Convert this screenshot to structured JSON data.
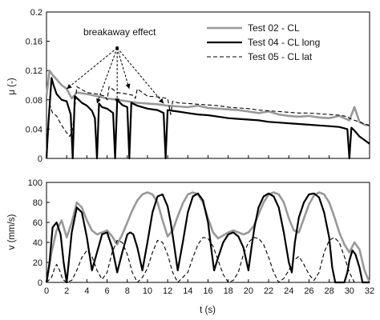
{
  "chart_data": [
    {
      "type": "line",
      "ylabel": "μ (-)",
      "xlim": [
        0,
        32
      ],
      "ylim": [
        0,
        0.2
      ],
      "yticks": [
        "0",
        "0.04",
        "0.08",
        "0.12",
        "0.16",
        "0.2"
      ],
      "grid": false,
      "legend": "top-right",
      "annotation": {
        "text": "breakaway effect",
        "origin": [
          7.0,
          0.151
        ],
        "targets": [
          [
            2.0,
            0.095
          ],
          [
            5.0,
            0.075
          ],
          [
            7.0,
            0.075
          ],
          [
            8.2,
            0.095
          ],
          [
            11.6,
            0.075
          ]
        ]
      },
      "series": [
        {
          "name": "Test 02 - CL",
          "color": "#999999",
          "style": "solid",
          "x": [
            0.0,
            0.3,
            0.6,
            1.0,
            1.5,
            2.0,
            2.5,
            3.0,
            4.0,
            5.0,
            6.0,
            7.0,
            8.0,
            9.0,
            10.0,
            11.0,
            12.0,
            13.0,
            14.0,
            15.0,
            16.0,
            17.0,
            18.0,
            19.0,
            20.0,
            21.0,
            22.0,
            23.0,
            24.0,
            25.0,
            26.0,
            27.0,
            28.0,
            29.0,
            30.0,
            30.5,
            31.0,
            31.5,
            32.0
          ],
          "y": [
            0.085,
            0.12,
            0.114,
            0.108,
            0.1,
            0.095,
            0.082,
            0.09,
            0.088,
            0.085,
            0.082,
            0.08,
            0.078,
            0.076,
            0.075,
            0.074,
            0.072,
            0.071,
            0.07,
            0.072,
            0.069,
            0.068,
            0.067,
            0.066,
            0.064,
            0.062,
            0.064,
            0.06,
            0.058,
            0.057,
            0.058,
            0.056,
            0.055,
            0.058,
            0.052,
            0.07,
            0.05,
            0.046,
            0.045
          ]
        },
        {
          "name": "Test 04 - CL long",
          "color": "#000000",
          "style": "solid",
          "x": [
            0.0,
            0.2,
            0.5,
            0.7,
            1.0,
            1.5,
            2.0,
            2.4,
            2.6,
            2.8,
            3.2,
            3.5,
            4.0,
            4.5,
            4.8,
            5.0,
            5.2,
            5.5,
            6.0,
            6.6,
            6.8,
            7.0,
            7.5,
            8.0,
            8.2,
            8.4,
            9.0,
            10.0,
            11.0,
            11.6,
            11.8,
            12.0,
            13.0,
            14.0,
            15.0,
            16.0,
            17.0,
            18.0,
            19.0,
            20.0,
            21.0,
            22.0,
            23.0,
            24.0,
            25.0,
            26.0,
            27.0,
            28.0,
            29.0,
            29.8,
            30.0,
            30.2,
            30.5,
            31.0,
            31.5,
            32.0
          ],
          "y": [
            0.0,
            0.05,
            0.11,
            0.1,
            0.088,
            0.08,
            0.078,
            0.06,
            0.0,
            0.085,
            0.08,
            0.076,
            0.072,
            0.065,
            0.055,
            0.0,
            0.075,
            0.07,
            0.068,
            0.062,
            0.0,
            0.08,
            0.073,
            0.07,
            0.0,
            0.076,
            0.072,
            0.068,
            0.066,
            0.062,
            0.0,
            0.066,
            0.064,
            0.062,
            0.06,
            0.059,
            0.057,
            0.055,
            0.054,
            0.053,
            0.052,
            0.05,
            0.049,
            0.048,
            0.047,
            0.046,
            0.045,
            0.044,
            0.043,
            0.04,
            0.0,
            0.042,
            0.038,
            0.03,
            0.025,
            0.02
          ]
        },
        {
          "name": "Test 05 - CL lat",
          "color": "#000000",
          "style": "dashed",
          "x": [
            0.0,
            0.3,
            0.6,
            1.0,
            1.5,
            2.0,
            2.3,
            2.6,
            3.0,
            4.0,
            5.0,
            5.8,
            6.0,
            6.2,
            7.0,
            8.0,
            8.6,
            8.8,
            9.0,
            10.0,
            11.0,
            12.0,
            12.3,
            12.5,
            13.0,
            14.0,
            15.0,
            16.0,
            17.0,
            18.0,
            19.0,
            20.0,
            21.0,
            22.0,
            23.0,
            24.0,
            25.0,
            26.0,
            27.0,
            28.0,
            29.0,
            29.8,
            30.0,
            30.5,
            31.0,
            31.5,
            32.0
          ],
          "y": [
            0.005,
            0.075,
            0.062,
            0.058,
            0.045,
            0.035,
            0.03,
            0.04,
            0.098,
            0.09,
            0.088,
            0.085,
            0.08,
            0.098,
            0.09,
            0.088,
            0.086,
            0.082,
            0.095,
            0.085,
            0.084,
            0.082,
            0.06,
            0.078,
            0.076,
            0.075,
            0.074,
            0.073,
            0.072,
            0.07,
            0.069,
            0.068,
            0.066,
            0.065,
            0.064,
            0.063,
            0.062,
            0.062,
            0.061,
            0.06,
            0.059,
            0.057,
            0.055,
            0.052,
            0.05,
            0.047,
            0.045
          ]
        }
      ]
    },
    {
      "type": "line",
      "xlabel": "t (s)",
      "ylabel": "v (mm/s)",
      "xlim": [
        0,
        32
      ],
      "ylim": [
        0,
        100
      ],
      "xticks": [
        "0",
        "2",
        "4",
        "6",
        "8",
        "10",
        "12",
        "14",
        "16",
        "18",
        "20",
        "22",
        "24",
        "26",
        "28",
        "30",
        "32"
      ],
      "yticks": [
        "0",
        "20",
        "40",
        "60",
        "80",
        "100"
      ],
      "grid": false,
      "series": [
        {
          "name": "Test 02 - CL",
          "color": "#999999",
          "style": "solid",
          "x": [
            0.0,
            0.5,
            1.0,
            1.5,
            2.0,
            2.5,
            3.0,
            3.5,
            4.0,
            4.5,
            5.0,
            5.5,
            6.0,
            6.5,
            7.0,
            7.5,
            8.0,
            8.5,
            9.0,
            9.5,
            10.0,
            10.5,
            11.0,
            11.5,
            12.0,
            12.5,
            13.0,
            13.5,
            14.0,
            14.5,
            15.0,
            15.5,
            16.0,
            16.5,
            17.0,
            17.5,
            18.0,
            18.5,
            19.0,
            19.5,
            20.0,
            20.5,
            21.0,
            21.5,
            22.0,
            22.5,
            23.0,
            23.5,
            24.0,
            24.5,
            25.0,
            25.5,
            26.0,
            26.5,
            27.0,
            27.5,
            28.0,
            28.5,
            29.0,
            29.5,
            30.0,
            30.5,
            31.0,
            31.5,
            32.0
          ],
          "y": [
            0,
            30,
            52,
            62,
            45,
            60,
            80,
            75,
            62,
            52,
            48,
            50,
            52,
            46,
            38,
            48,
            60,
            72,
            82,
            88,
            90,
            88,
            80,
            62,
            46,
            52,
            66,
            79,
            88,
            90,
            88,
            80,
            64,
            50,
            44,
            47,
            50,
            52,
            50,
            48,
            50,
            56,
            68,
            80,
            88,
            90,
            88,
            80,
            64,
            52,
            50,
            64,
            78,
            87,
            90,
            88,
            80,
            66,
            50,
            38,
            30,
            40,
            33,
            12,
            0
          ]
        },
        {
          "name": "Test 04 - CL long",
          "color": "#000000",
          "style": "solid",
          "x": [
            0.0,
            0.3,
            0.6,
            1.0,
            1.4,
            1.7,
            2.0,
            2.5,
            3.0,
            3.5,
            4.0,
            4.5,
            5.0,
            5.5,
            6.0,
            6.5,
            7.0,
            7.5,
            8.0,
            8.3,
            8.6,
            9.0,
            9.5,
            10.0,
            10.5,
            11.0,
            11.5,
            12.0,
            12.3,
            12.6,
            13.0,
            13.5,
            14.0,
            14.5,
            15.0,
            15.5,
            16.0,
            16.3,
            16.6,
            17.0,
            17.5,
            18.0,
            18.5,
            19.0,
            19.5,
            20.0,
            20.3,
            20.6,
            21.0,
            21.5,
            22.0,
            22.5,
            23.0,
            23.5,
            24.0,
            24.3,
            24.6,
            25.0,
            25.5,
            26.0,
            26.5,
            27.0,
            27.5,
            28.0,
            28.3,
            28.6,
            29.0,
            29.5,
            29.8,
            30.0,
            30.3,
            30.6,
            31.0,
            31.3,
            32.0
          ],
          "y": [
            0,
            20,
            55,
            60,
            48,
            20,
            0,
            50,
            75,
            70,
            45,
            12,
            30,
            48,
            50,
            35,
            10,
            30,
            48,
            50,
            48,
            35,
            12,
            40,
            70,
            86,
            88,
            76,
            60,
            40,
            12,
            40,
            70,
            86,
            89,
            82,
            60,
            35,
            12,
            25,
            40,
            48,
            50,
            46,
            35,
            12,
            35,
            55,
            75,
            86,
            89,
            86,
            75,
            50,
            20,
            10,
            40,
            65,
            80,
            88,
            89,
            85,
            70,
            45,
            15,
            0,
            0,
            0,
            10,
            22,
            32,
            28,
            15,
            0,
            0
          ]
        },
        {
          "name": "Test 05 - CL lat",
          "color": "#000000",
          "style": "dashed",
          "x": [
            0.0,
            0.5,
            0.8,
            1.0,
            1.3,
            1.6,
            2.0,
            2.5,
            3.0,
            3.5,
            4.0,
            4.5,
            5.0,
            5.5,
            6.0,
            6.5,
            7.0,
            7.5,
            8.0,
            8.5,
            9.0,
            9.5,
            10.0,
            10.5,
            11.0,
            11.5,
            12.0,
            12.5,
            13.0,
            13.5,
            14.0,
            14.5,
            15.0,
            15.5,
            16.0,
            16.5,
            17.0,
            17.5,
            18.0,
            18.5,
            19.0,
            19.5,
            20.0,
            20.5,
            21.0,
            21.5,
            22.0,
            22.5,
            23.0,
            23.5,
            24.0,
            24.5,
            25.0,
            25.5,
            26.0,
            26.5,
            27.0,
            27.5,
            28.0,
            28.5,
            29.0,
            29.5,
            30.0,
            30.5,
            31.0,
            31.5,
            32.0
          ],
          "y": [
            0,
            5,
            14,
            18,
            12,
            3,
            0,
            2,
            12,
            25,
            32,
            26,
            12,
            3,
            10,
            30,
            42,
            40,
            28,
            10,
            0,
            5,
            14,
            30,
            42,
            40,
            28,
            10,
            0,
            5,
            10,
            25,
            38,
            45,
            44,
            36,
            22,
            8,
            0,
            2,
            10,
            28,
            40,
            45,
            44,
            38,
            25,
            10,
            0,
            4,
            12,
            22,
            26,
            18,
            8,
            2,
            10,
            30,
            42,
            45,
            40,
            26,
            10,
            0,
            0,
            0,
            0
          ]
        }
      ]
    }
  ]
}
